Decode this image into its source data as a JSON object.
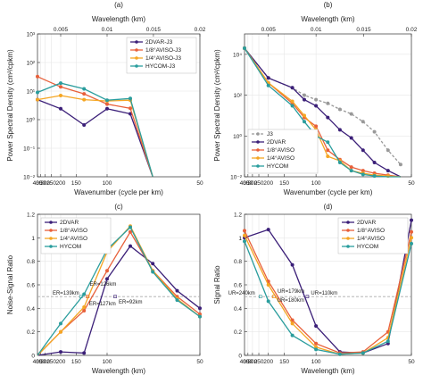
{
  "chart_data": [
    {
      "type": "line",
      "panel_label": "(a)",
      "xlabel": "Wavenumber (cycle per km)",
      "ylabel": "Power Spectral Density (cm²/cpkm)",
      "x_scale": "reciprocal",
      "xlim": [
        400,
        50
      ],
      "ylim": [
        0.01,
        1000
      ],
      "y_scale": "log",
      "x_ticks": [
        400,
        350,
        300,
        250,
        200,
        150,
        100,
        50
      ],
      "x_tick_labels": [
        "400",
        "350",
        "300",
        "250",
        "200",
        "150",
        "100",
        "50"
      ],
      "y_ticks": [
        0.01,
        0.1,
        1,
        10,
        100,
        1000
      ],
      "y_tick_labels": [
        "10⁻²",
        "10⁻¹",
        "10⁰",
        "10¹",
        "10²",
        "10³"
      ],
      "top_axis_label": "Wavelength (km)",
      "top_ticks": [
        200,
        100,
        66.7,
        50
      ],
      "top_tick_labels": [
        "0.005",
        "0.01",
        "0.015",
        "0.02"
      ],
      "grid": true,
      "legend_position": "top-right",
      "series": [
        {
          "name": "2DVAR-J3",
          "color": "#3b1f78",
          "x": [
            400,
            200,
            133,
            100,
            80,
            67
          ],
          "y": [
            5,
            2.4,
            0.65,
            2.4,
            1.6,
            0.01
          ]
        },
        {
          "name": "1/8°AVISO-J3",
          "color": "#e8603a",
          "x": [
            400,
            200,
            133,
            100,
            80,
            67
          ],
          "y": [
            32,
            14,
            8,
            3.5,
            2.5,
            0.01
          ]
        },
        {
          "name": "1/4°AVISO-J3",
          "color": "#f5a623",
          "x": [
            400,
            200,
            133,
            100,
            80,
            67
          ],
          "y": [
            5,
            7,
            5,
            4.5,
            4.8,
            0.01
          ]
        },
        {
          "name": "HYCOM-J3",
          "color": "#2a9d9d",
          "x": [
            400,
            200,
            133,
            100,
            80,
            67
          ],
          "y": [
            9,
            19,
            12,
            4.8,
            5.5,
            0.01
          ]
        }
      ]
    },
    {
      "type": "line",
      "panel_label": "(b)",
      "xlabel": "Wavenumber (cycle per km)",
      "ylabel": "Power Spectral Density (cm²/cpkm)",
      "x_scale": "reciprocal",
      "xlim": [
        400,
        50
      ],
      "ylim": [
        0.01,
        100000
      ],
      "y_scale": "log",
      "x_ticks": [
        400,
        350,
        300,
        250,
        200,
        150,
        100,
        50
      ],
      "x_tick_labels": [
        "400",
        "350",
        "300",
        "250",
        "200",
        "150",
        "100",
        "50"
      ],
      "y_ticks": [
        0.01,
        1,
        100,
        10000
      ],
      "y_tick_labels": [
        "10⁻²",
        "10⁰",
        "10²",
        "10⁴"
      ],
      "top_axis_label": "Wavelength (km)",
      "top_ticks": [
        200,
        100,
        66.7,
        50
      ],
      "top_tick_labels": [
        "0.005",
        "0.01",
        "0.015",
        "0.02"
      ],
      "grid": true,
      "legend_position": "bottom-left",
      "series": [
        {
          "name": "J3",
          "color": "#999999",
          "dashed": true,
          "x": [
            400,
            200,
            133,
            114,
            100,
            89,
            80,
            73,
            67,
            62,
            57,
            53
          ],
          "y": [
            20000,
            700,
            230,
            100,
            60,
            40,
            20,
            12,
            5,
            1.6,
            0.2,
            0.04
          ]
        },
        {
          "name": "2DVAR",
          "color": "#3b1f78",
          "x": [
            400,
            200,
            133,
            114,
            100,
            89,
            80,
            73,
            67,
            62,
            57,
            53
          ],
          "y": [
            20000,
            700,
            230,
            60,
            30,
            8,
            2,
            0.8,
            0.2,
            0.05,
            0.02,
            0.01
          ]
        },
        {
          "name": "1/8°AVISO",
          "color": "#e8603a",
          "x": [
            400,
            200,
            133,
            114,
            100,
            89,
            80,
            73,
            67,
            62,
            57,
            53
          ],
          "y": [
            20000,
            400,
            40,
            8,
            3,
            0.2,
            0.07,
            0.03,
            0.02,
            0.015,
            0.012,
            0.01
          ]
        },
        {
          "name": "1/4°AVISO",
          "color": "#f5a623",
          "x": [
            400,
            200,
            133,
            114,
            100,
            89,
            80,
            73,
            67,
            62,
            57,
            53
          ],
          "y": [
            20000,
            400,
            50,
            10,
            2,
            0.1,
            0.06,
            0.02,
            0.015,
            0.012,
            0.011,
            0.01
          ]
        },
        {
          "name": "HYCOM",
          "color": "#2a9d9d",
          "x": [
            400,
            200,
            133,
            114,
            100,
            89,
            80,
            73,
            67,
            62,
            57,
            53
          ],
          "y": [
            20000,
            300,
            30,
            5,
            1,
            0.5,
            0.05,
            0.02,
            0.013,
            0.011,
            0.01,
            0.01
          ]
        }
      ]
    },
    {
      "type": "line",
      "panel_label": "(c)",
      "xlabel": "Wavelength (km)",
      "ylabel": "Noise-Signal Ratio",
      "x_scale": "reciprocal",
      "xlim": [
        400,
        50
      ],
      "ylim": [
        0,
        1.2
      ],
      "x_ticks": [
        400,
        350,
        300,
        250,
        200,
        150,
        100,
        50
      ],
      "x_tick_labels": [
        "400",
        "350",
        "300",
        "250",
        "200",
        "150",
        "100",
        "50"
      ],
      "y_ticks": [
        0,
        0.2,
        0.4,
        0.6,
        0.8,
        1,
        1.2
      ],
      "y_tick_labels": [
        "0",
        "0.2",
        "0.4",
        "0.6",
        "0.8",
        "1",
        "1.2"
      ],
      "grid": true,
      "legend_position": "top-left",
      "reference_line": 0.5,
      "annotations": [
        {
          "text": "ER=139km",
          "color": "#2a9d9d",
          "x": 139,
          "y": 0.5
        },
        {
          "text": "ER=126km",
          "color": "#f5a623",
          "x": 126,
          "y": 0.5
        },
        {
          "text": "ER=127km",
          "color": "#e8603a",
          "x": 127,
          "y": 0.5
        },
        {
          "text": "ER=92km",
          "color": "#3b1f78",
          "x": 92,
          "y": 0.5
        }
      ],
      "series": [
        {
          "name": "2DVAR",
          "color": "#3b1f78",
          "x": [
            400,
            200,
            133,
            100,
            80,
            67,
            57,
            50
          ],
          "y": [
            0,
            0.03,
            0.02,
            0.65,
            0.93,
            0.78,
            0.55,
            0.4
          ]
        },
        {
          "name": "1/8°AVISO",
          "color": "#e8603a",
          "x": [
            400,
            200,
            133,
            100,
            80,
            67,
            57,
            50
          ],
          "y": [
            0,
            0.2,
            0.38,
            0.72,
            1.05,
            0.72,
            0.5,
            0.35
          ]
        },
        {
          "name": "1/4°AVISO",
          "color": "#f5a623",
          "x": [
            400,
            200,
            133,
            100,
            80,
            67,
            57,
            50
          ],
          "y": [
            0,
            0.2,
            0.41,
            0.88,
            1.1,
            0.72,
            0.48,
            0.33
          ]
        },
        {
          "name": "HYCOM",
          "color": "#2a9d9d",
          "x": [
            400,
            200,
            133,
            100,
            80,
            67,
            57,
            50
          ],
          "y": [
            0,
            0.27,
            0.52,
            0.9,
            1.09,
            0.71,
            0.47,
            0.33
          ]
        }
      ]
    },
    {
      "type": "line",
      "panel_label": "(d)",
      "xlabel": "Wavelength (km)",
      "ylabel": "Signal Ratio",
      "x_scale": "reciprocal",
      "xlim": [
        400,
        50
      ],
      "ylim": [
        0,
        1.2
      ],
      "x_ticks": [
        400,
        350,
        300,
        250,
        200,
        150,
        100,
        50
      ],
      "x_tick_labels": [
        "400",
        "350",
        "300",
        "250",
        "200",
        "150",
        "100",
        "50"
      ],
      "y_ticks": [
        0,
        0.2,
        0.4,
        0.6,
        0.8,
        1,
        1.2
      ],
      "y_tick_labels": [
        "0",
        "0.2",
        "0.4",
        "0.6",
        "0.8",
        "1",
        "1.2"
      ],
      "grid": true,
      "legend_position": "top-right",
      "reference_line": 0.5,
      "annotations": [
        {
          "text": "UR=240km",
          "color": "#2a9d9d",
          "x": 240,
          "y": 0.5
        },
        {
          "text": "UR=179km",
          "color": "#e8603a",
          "x": 179,
          "y": 0.5
        },
        {
          "text": "UR=180km",
          "color": "#f5a623",
          "x": 180,
          "y": 0.5
        },
        {
          "text": "UR=110km",
          "color": "#3b1f78",
          "x": 110,
          "y": 0.5
        }
      ],
      "series": [
        {
          "name": "2DVAR",
          "color": "#3b1f78",
          "x": [
            400,
            200,
            133,
            100,
            80,
            67,
            57,
            50
          ],
          "y": [
            1,
            1.07,
            0.77,
            0.25,
            0.03,
            0.02,
            0.1,
            1.15
          ]
        },
        {
          "name": "1/8°AVISO",
          "color": "#e8603a",
          "x": [
            400,
            200,
            133,
            100,
            80,
            67,
            57,
            50
          ],
          "y": [
            1.06,
            0.63,
            0.3,
            0.1,
            0.02,
            0.03,
            0.2,
            1.05
          ]
        },
        {
          "name": "1/4°AVISO",
          "color": "#f5a623",
          "x": [
            400,
            200,
            133,
            100,
            80,
            67,
            57,
            50
          ],
          "y": [
            1.02,
            0.6,
            0.27,
            0.07,
            0.01,
            0.02,
            0.15,
            1.0
          ]
        },
        {
          "name": "HYCOM",
          "color": "#2a9d9d",
          "x": [
            400,
            200,
            133,
            100,
            80,
            67,
            57,
            50
          ],
          "y": [
            0.97,
            0.46,
            0.17,
            0.05,
            0.01,
            0.02,
            0.12,
            0.95
          ]
        }
      ]
    }
  ]
}
